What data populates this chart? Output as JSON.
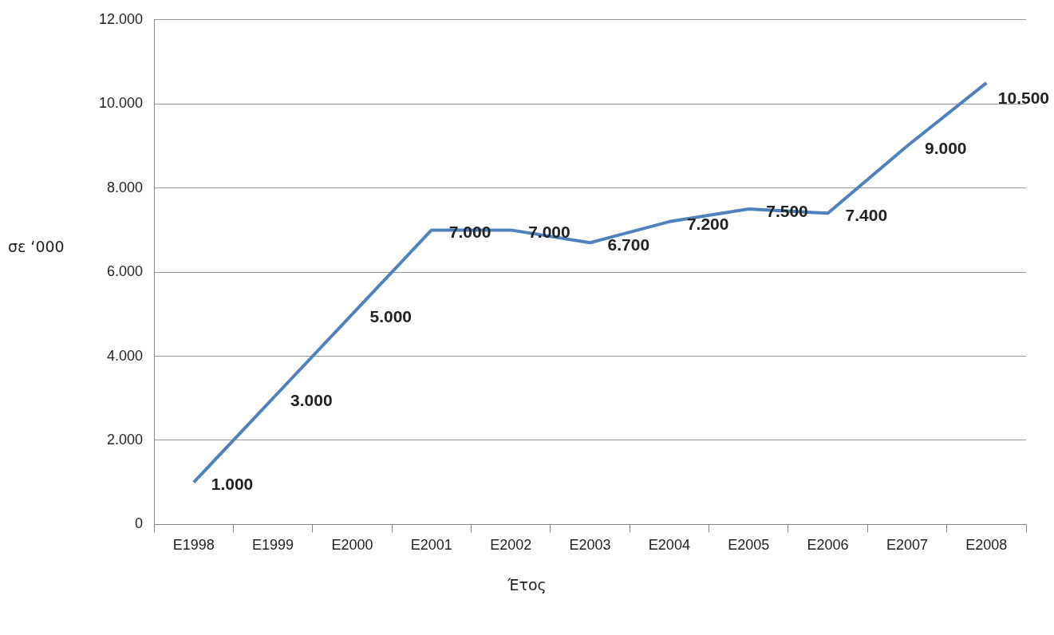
{
  "chart_data": {
    "type": "line",
    "xlabel": "Έτος",
    "ylabel": "σε ‘000",
    "categories": [
      "E1998",
      "E1999",
      "E2000",
      "E2001",
      "E2002",
      "E2003",
      "E2004",
      "E2005",
      "E2006",
      "E2007",
      "E2008"
    ],
    "series": [
      {
        "color": "#4f81bd",
        "values": [
          1000,
          3000,
          5000,
          7000,
          7000,
          6700,
          7200,
          7500,
          7400,
          9000,
          10500
        ],
        "value_labels": [
          "1.000",
          "3.000",
          "5.000",
          "7.000",
          "7.000",
          "6.700",
          "7.200",
          "7.500",
          "7.400",
          "9.000",
          "10.500"
        ]
      }
    ],
    "ylim": [
      0,
      12000
    ],
    "yticks": [
      {
        "value": 0,
        "label": "0"
      },
      {
        "value": 2000,
        "label": "2.000"
      },
      {
        "value": 4000,
        "label": "4.000"
      },
      {
        "value": 6000,
        "label": "6.000"
      },
      {
        "value": 8000,
        "label": "8.000"
      },
      {
        "value": 10000,
        "label": "10.000"
      },
      {
        "value": 12000,
        "label": "12.000"
      }
    ],
    "grid": "y",
    "legend": false,
    "marker": "none",
    "line_style": "solid"
  }
}
